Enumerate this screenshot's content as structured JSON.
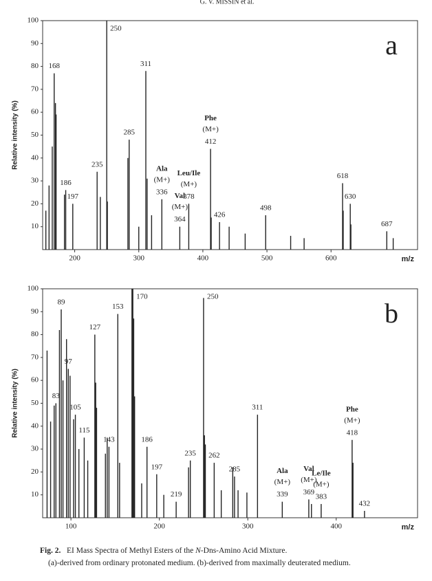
{
  "header": "G. V. MISSIN et al.",
  "chart_data": [
    {
      "type": "bar",
      "panel_label": "a",
      "y_label": "Relative intensity (%)",
      "x_label": "m/z",
      "color": "#222222",
      "x": [
        155,
        160,
        165,
        168,
        170,
        171,
        184,
        186,
        197,
        235,
        240,
        250,
        251,
        283,
        285,
        300,
        311,
        313,
        320,
        336,
        364,
        378,
        412,
        413,
        426,
        441,
        466,
        498,
        537,
        558,
        618,
        619,
        630,
        631,
        687,
        697
      ],
      "values": [
        17,
        28,
        45,
        77,
        64,
        59,
        24,
        26,
        20,
        34,
        23,
        100,
        21,
        40,
        48,
        10,
        78,
        31,
        15,
        22,
        10,
        20,
        44,
        14,
        12,
        10,
        7,
        15,
        6,
        5,
        29,
        17,
        20,
        11,
        8,
        5
      ],
      "labeled_peaks": [
        168,
        186,
        197,
        235,
        250,
        285,
        311,
        336,
        364,
        378,
        412,
        426,
        498,
        618,
        630,
        687
      ],
      "annotations": [
        {
          "name": "Ala",
          "ion": "(M+)",
          "x": 336
        },
        {
          "name": "Val",
          "ion": "(M+)",
          "x": 364
        },
        {
          "name": "Leu/Ile",
          "ion": "(M+)",
          "x": 378
        },
        {
          "name": "Phe",
          "ion": "(M+)",
          "x": 412
        }
      ],
      "xlim": [
        150,
        735
      ],
      "xticks": [
        200,
        300,
        400,
        500,
        600
      ],
      "ylim": [
        0,
        100
      ],
      "yticks": [
        10,
        20,
        30,
        40,
        50,
        60,
        70,
        80,
        90,
        100
      ]
    },
    {
      "type": "bar",
      "panel_label": "b",
      "y_label": "Relative intensity (%)",
      "x_label": "m/z",
      "color": "#222222",
      "x": [
        73,
        77,
        81,
        83,
        87,
        89,
        91,
        95,
        97,
        99,
        103,
        105,
        109,
        115,
        119,
        127,
        128,
        129,
        139,
        141,
        143,
        153,
        155,
        169,
        170,
        171,
        172,
        180,
        186,
        197,
        205,
        219,
        233,
        235,
        250,
        251,
        252,
        262,
        270,
        283,
        285,
        289,
        299,
        311,
        339,
        369,
        372,
        383,
        418,
        419,
        432
      ],
      "values": [
        73,
        42,
        49,
        50,
        82,
        91,
        60,
        78,
        65,
        62,
        43,
        45,
        30,
        35,
        25,
        80,
        59,
        48,
        28,
        35,
        31,
        89,
        24,
        100,
        100,
        87,
        53,
        15,
        31,
        19,
        10,
        7,
        22,
        25,
        96,
        36,
        32,
        24,
        12,
        22,
        18,
        12,
        11,
        45,
        7,
        8,
        6,
        6,
        34,
        24,
        3
      ],
      "labeled_peaks": [
        83,
        89,
        97,
        105,
        115,
        127,
        143,
        153,
        170,
        186,
        197,
        219,
        235,
        250,
        262,
        285,
        311,
        339,
        369,
        383,
        418,
        432
      ],
      "annotations": [
        {
          "name": "Ala",
          "ion": "(M+)",
          "x": 339
        },
        {
          "name": "Val",
          "ion": "(M+)",
          "x": 369
        },
        {
          "name": "Le/Ile",
          "ion": "(M+)",
          "x": 383
        },
        {
          "name": "Phe",
          "ion": "(M+)",
          "x": 418
        }
      ],
      "xlim": [
        68,
        492
      ],
      "xticks": [
        100,
        200,
        300,
        400
      ],
      "ylim": [
        0,
        100
      ],
      "yticks": [
        10,
        20,
        30,
        40,
        50,
        60,
        70,
        80,
        90,
        100
      ]
    }
  ],
  "caption": {
    "label": "Fig. 2.",
    "text_1": "EI Mass Spectra of Methyl Esters of the ",
    "italic": "N",
    "text_2": "-Dns-Amino Acid Mixture.",
    "line_2": "(a)-derived from ordinary protonated medium. (b)-derived from maximally deuterated medium."
  }
}
